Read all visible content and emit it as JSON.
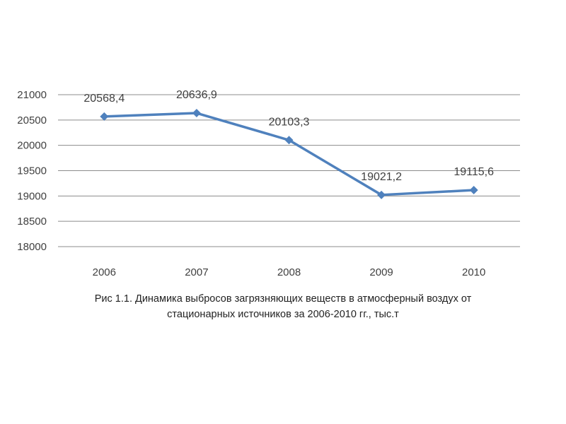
{
  "chart_data": {
    "type": "line",
    "categories": [
      "2006",
      "2007",
      "2008",
      "2009",
      "2010"
    ],
    "series": [
      {
        "values": [
          20568.4,
          20636.9,
          20103.3,
          19021.2,
          19115.6
        ],
        "value_labels": [
          "20568,4",
          "20636,9",
          "20103,3",
          "19021,2",
          "19115,6"
        ],
        "color": "#4f81bd",
        "marker": "diamond"
      }
    ],
    "ylim": [
      18000,
      21000
    ],
    "ytick_step": 500,
    "grid": true,
    "legend": "none",
    "caption_lines": [
      "Рис 1.1.  Динамика выбросов загрязняющих веществ в атмосферный воздух от",
      "стационарных источников за 2006-2010 гг., тыс.т"
    ]
  },
  "colors": {
    "gridline": "#8c8c8c",
    "series": "#4f81bd",
    "text": "#404040"
  }
}
